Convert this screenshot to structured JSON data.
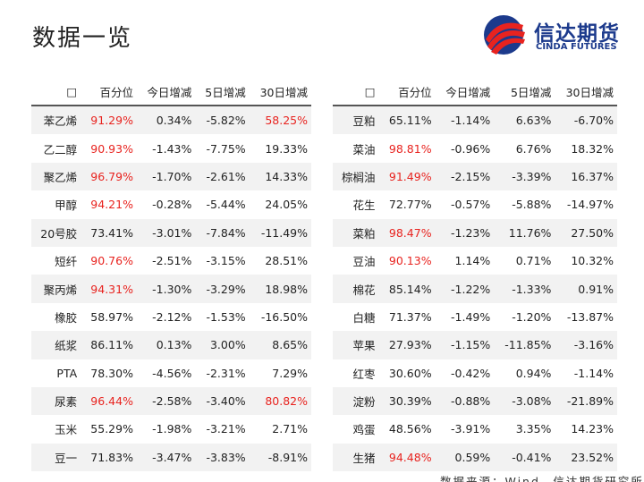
{
  "header": {
    "title": "数据一览",
    "logo_cn": "信达期货",
    "logo_en": "CINDA FUTURES"
  },
  "tables": [
    {
      "columns": [
        "□",
        "百分位",
        "今日增减",
        "5日增减",
        "30日增减"
      ],
      "rows": [
        [
          "苯乙烯",
          "91.29%",
          "0.34%",
          "-5.82%",
          "58.25%"
        ],
        [
          "乙二醇",
          "90.93%",
          "-1.43%",
          "-7.75%",
          "19.33%"
        ],
        [
          "聚乙烯",
          "96.79%",
          "-1.70%",
          "-2.61%",
          "14.33%"
        ],
        [
          "甲醇",
          "94.21%",
          "-0.28%",
          "-5.44%",
          "24.05%"
        ],
        [
          "20号胶",
          "73.41%",
          "-3.01%",
          "-7.84%",
          "-11.49%"
        ],
        [
          "短纤",
          "90.76%",
          "-2.51%",
          "-3.15%",
          "28.51%"
        ],
        [
          "聚丙烯",
          "94.31%",
          "-1.30%",
          "-3.29%",
          "18.98%"
        ],
        [
          "橡胶",
          "58.97%",
          "-2.12%",
          "-1.53%",
          "-16.50%"
        ],
        [
          "纸浆",
          "86.11%",
          "0.13%",
          "3.00%",
          "8.65%"
        ],
        [
          "PTA",
          "78.30%",
          "-4.56%",
          "-2.31%",
          "7.29%"
        ],
        [
          "尿素",
          "96.44%",
          "-2.58%",
          "-3.40%",
          "80.82%"
        ],
        [
          "玉米",
          "55.29%",
          "-1.98%",
          "-3.21%",
          "2.71%"
        ],
        [
          "豆一",
          "71.83%",
          "-3.47%",
          "-3.83%",
          "-8.91%"
        ]
      ]
    },
    {
      "columns": [
        "□",
        "百分位",
        "今日增减",
        "5日增减",
        "30日增减"
      ],
      "rows": [
        [
          "豆粕",
          "65.11%",
          "-1.14%",
          "6.63%",
          "-6.70%"
        ],
        [
          "菜油",
          "98.81%",
          "-0.96%",
          "6.76%",
          "18.32%"
        ],
        [
          "棕榈油",
          "91.49%",
          "-2.15%",
          "-3.39%",
          "16.37%"
        ],
        [
          "花生",
          "72.77%",
          "-0.57%",
          "-5.88%",
          "-14.97%"
        ],
        [
          "菜粕",
          "98.47%",
          "-1.23%",
          "11.76%",
          "27.50%"
        ],
        [
          "豆油",
          "90.13%",
          "1.14%",
          "0.71%",
          "10.32%"
        ],
        [
          "棉花",
          "85.14%",
          "-1.22%",
          "-1.33%",
          "0.91%"
        ],
        [
          "白糖",
          "71.37%",
          "-1.49%",
          "-1.20%",
          "-13.87%"
        ],
        [
          "苹果",
          "27.93%",
          "-1.15%",
          "-11.85%",
          "-3.16%"
        ],
        [
          "红枣",
          "30.60%",
          "-0.42%",
          "0.94%",
          "-1.14%"
        ],
        [
          "淀粉",
          "30.39%",
          "-0.88%",
          "-3.08%",
          "-21.89%"
        ],
        [
          "鸡蛋",
          "48.56%",
          "-3.91%",
          "3.35%",
          "14.23%"
        ],
        [
          "生猪",
          "94.48%",
          "0.59%",
          "-0.41%",
          "23.52%"
        ]
      ]
    }
  ],
  "footer": {
    "source": "数据来源：Wind，信达期货研究所"
  }
}
